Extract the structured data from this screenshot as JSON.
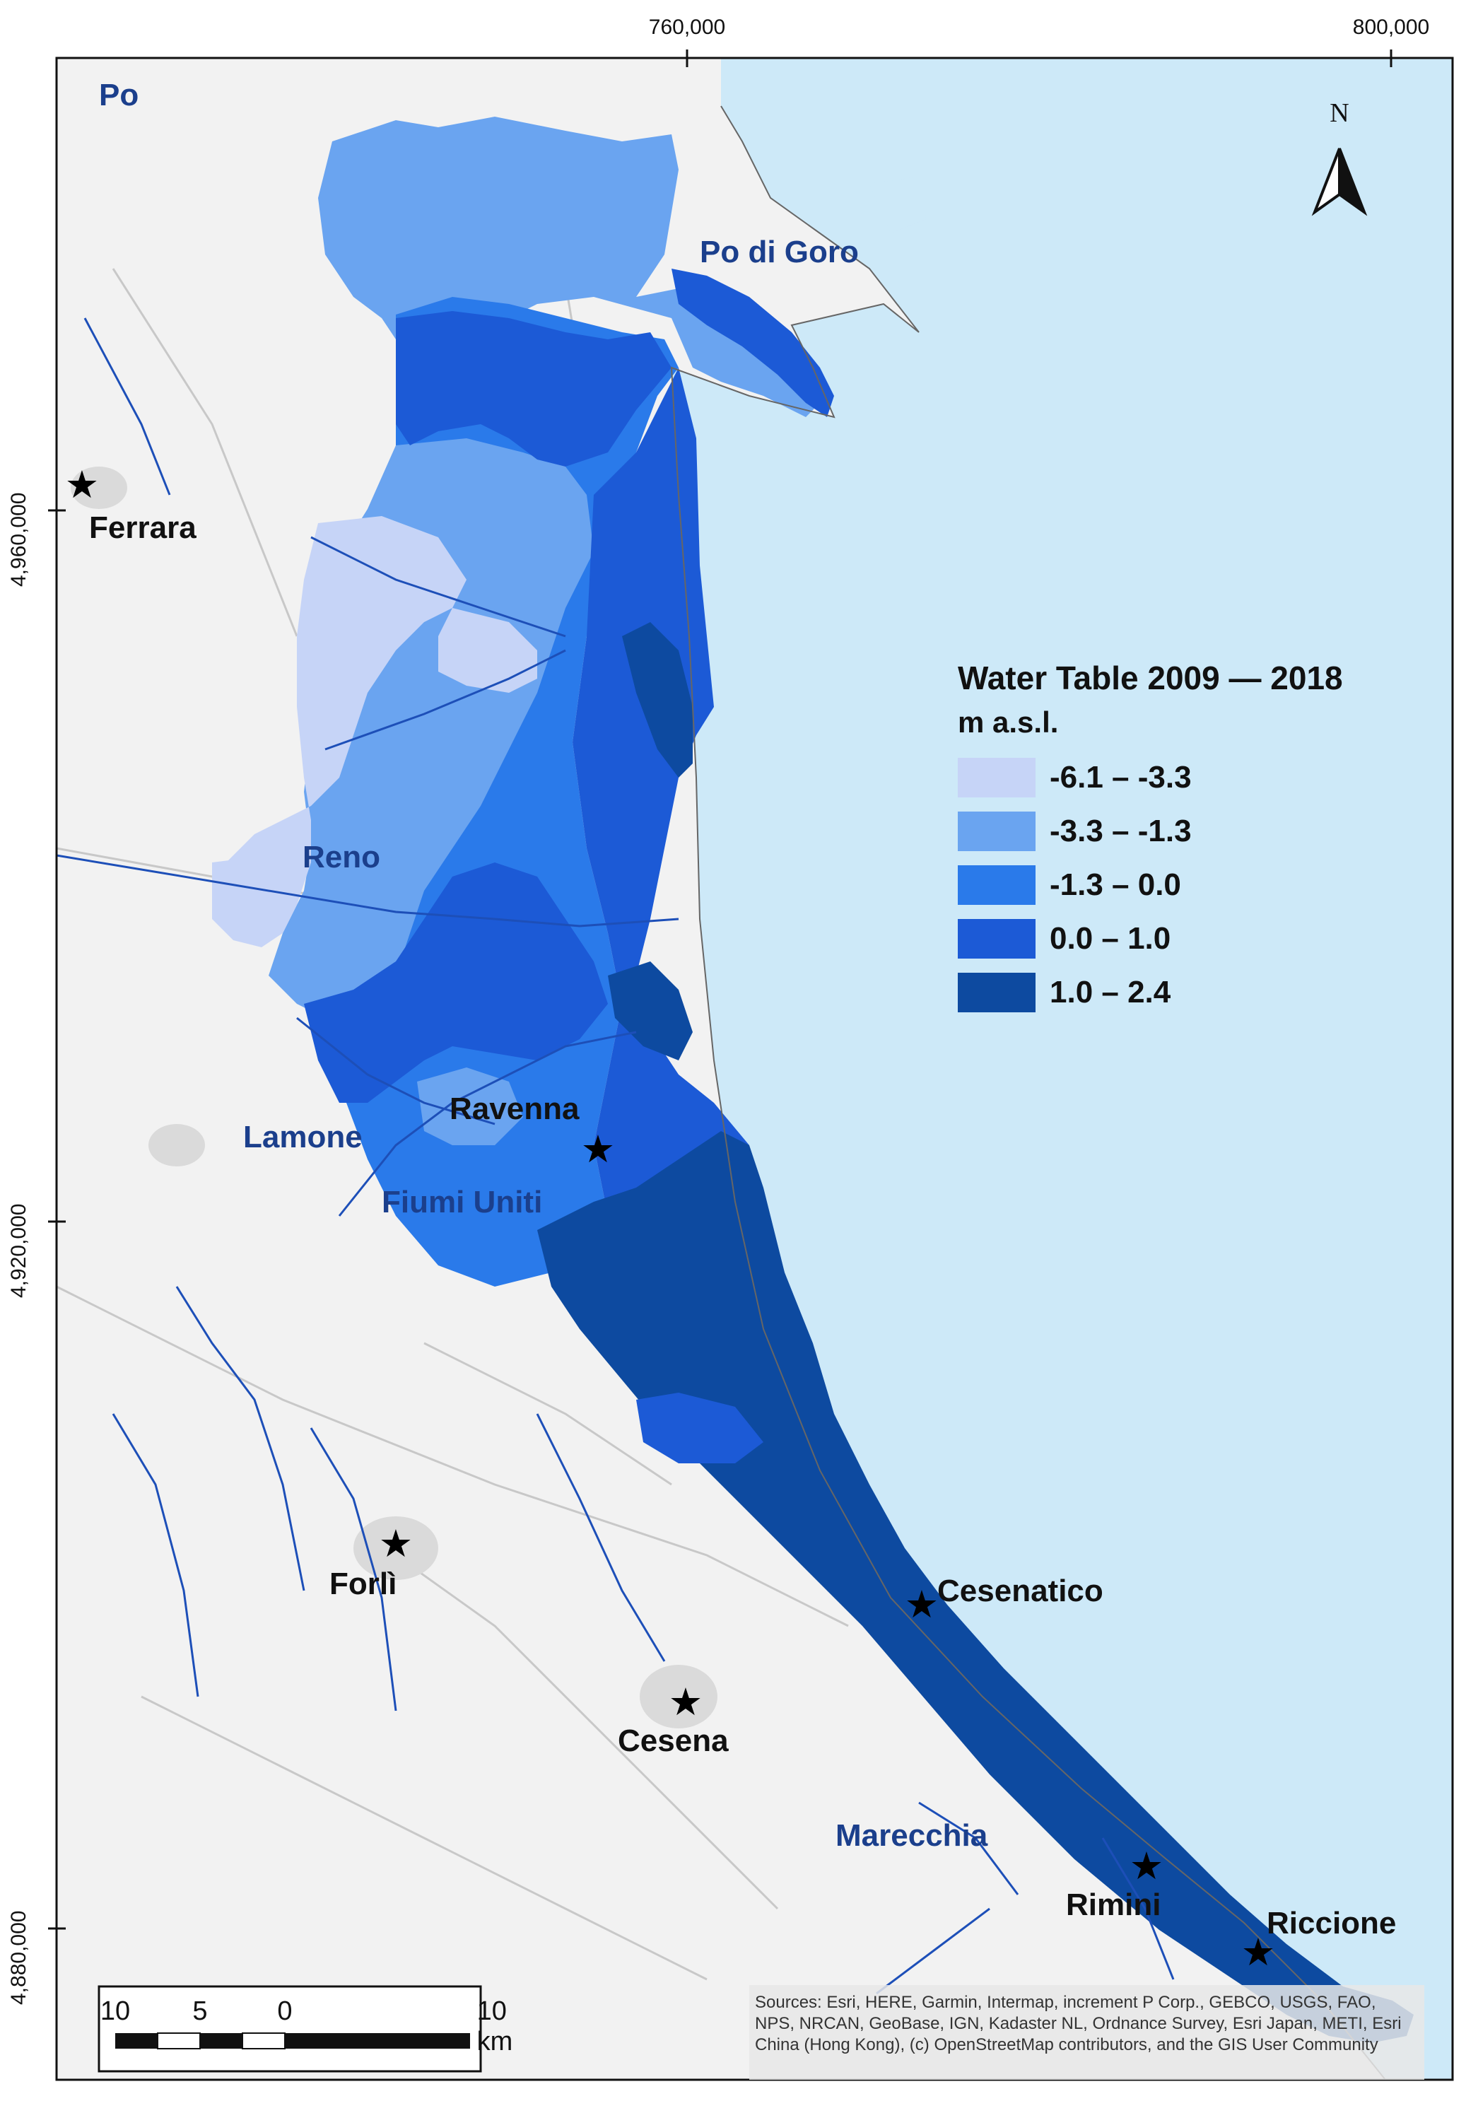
{
  "map": {
    "coords_x": [
      "760,000",
      "800,000"
    ],
    "coords_y": [
      "4,960,000",
      "4,920,000",
      "4,880,000"
    ]
  },
  "legend": {
    "title": "Water Table 2009 — 2018",
    "unit": "m a.s.l.",
    "classes": [
      {
        "label": "-6.1 – -3.3",
        "color": "#c6d4f7"
      },
      {
        "label": "-3.3 – -1.3",
        "color": "#6aa4f0"
      },
      {
        "label": "-1.3 – 0.0",
        "color": "#2a7aea"
      },
      {
        "label": "0.0 – 1.0",
        "color": "#1c5ad6"
      },
      {
        "label": "1.0 – 2.4",
        "color": "#0d4aa0"
      }
    ]
  },
  "rivers": {
    "po": "Po",
    "po_di_goro": "Po di Goro",
    "reno": "Reno",
    "lamone": "Lamone",
    "fiumi_uniti": "Fiumi Uniti",
    "marecchia": "Marecchia"
  },
  "cities": {
    "ferrara": "Ferrara",
    "ravenna": "Ravenna",
    "forli": "Forlì",
    "cesena": "Cesena",
    "cesenatico": "Cesenatico",
    "rimini": "Rimini",
    "riccione": "Riccione"
  },
  "north_arrow": {
    "label": "N"
  },
  "scalebar": {
    "labels": [
      "10",
      "5",
      "0",
      "10 km"
    ]
  },
  "attribution": "Sources: Esri, HERE, Garmin, Intermap, increment P Corp., GEBCO, USGS, FAO, NPS, NRCAN, GeoBase, IGN, Kadaster NL, Ordnance Survey, Esri Japan, METI, Esri China (Hong Kong), (c) OpenStreetMap contributors, and the GIS User Community",
  "colors": {
    "sea": "#cde9f8",
    "land": "#f2f2f2",
    "river": "#1d4fb8",
    "frame": "#111111"
  }
}
